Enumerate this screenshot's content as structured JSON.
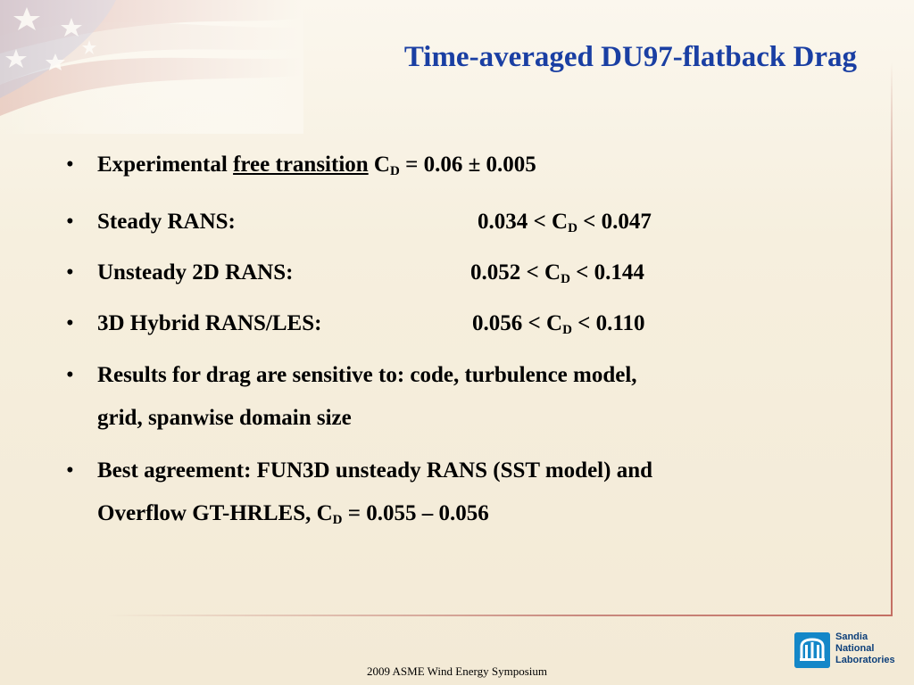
{
  "title": "Time-averaged DU97-flatback Drag",
  "bullets": {
    "b1": {
      "prefix": "Experimental ",
      "underlined": "free transition",
      "mid": " C",
      "sub": "D",
      "suffix": " = 0.06 ± 0.005"
    },
    "b2": {
      "label": "Steady RANS:",
      "pre": "0.034 < C",
      "sub": "D",
      "post": " < 0.047"
    },
    "b3": {
      "label": "Unsteady 2D RANS:",
      "pre": "0.052 < C",
      "sub": "D",
      "post": " < 0.144"
    },
    "b4": {
      "label": "3D Hybrid RANS/LES:",
      "pre": "0.056 < C",
      "sub": "D",
      "post": " < 0.110"
    },
    "b5": {
      "line1": "Results for drag are sensitive to: code, turbulence model,",
      "line2": "grid, spanwise domain size"
    },
    "b6": {
      "line1": "Best agreement: FUN3D unsteady RANS (SST model) and",
      "line2_pre": "Overflow GT-HRLES,  C",
      "sub": "D",
      "line2_post": " = 0.055 – 0.056"
    }
  },
  "bullet_char": "•",
  "footer": "2009 ASME Wind Energy Symposium",
  "logo": {
    "line1": "Sandia",
    "line2": "National",
    "line3": "Laboratories"
  },
  "colors": {
    "title": "#1a3fa3",
    "logo": "#1487c8",
    "frame": "#c46f63"
  }
}
